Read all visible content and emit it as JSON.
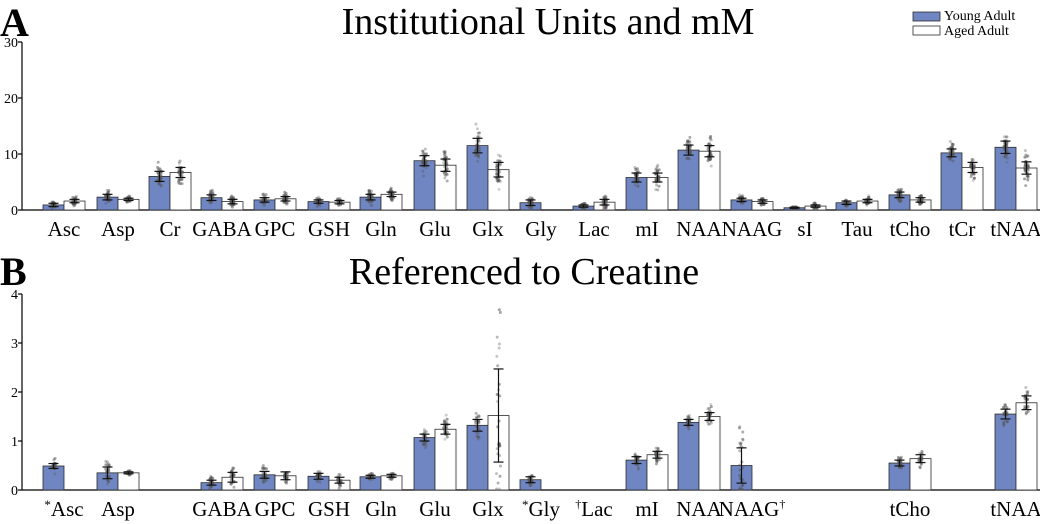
{
  "legend": {
    "young_label": "Young Adult",
    "aged_label": "Aged Adult",
    "young_color": "#6f86c2",
    "aged_color": "#ffffff"
  },
  "chart_data": [
    {
      "panel_letter": "A",
      "type": "bar",
      "title": "Institutional Units and mM",
      "xlabel": "",
      "ylabel": "",
      "ylim": [
        0,
        30
      ],
      "yticks": [
        0,
        10,
        20,
        30
      ],
      "grid": false,
      "legend_position": "top-right",
      "categories": [
        "Asc",
        "Asp",
        "Cr",
        "GABA",
        "GPC",
        "GSH",
        "Gln",
        "Glu",
        "Glx",
        "Gly",
        "Lac",
        "mI",
        "NAA",
        "NAAG",
        "sI",
        "Tau",
        "tCho",
        "tCr",
        "tNAA"
      ],
      "series": [
        {
          "name": "Young Adult",
          "values": [
            0.9,
            2.3,
            6.0,
            2.2,
            1.8,
            1.5,
            2.3,
            8.8,
            11.5,
            1.3,
            0.7,
            5.8,
            10.7,
            1.8,
            0.4,
            1.3,
            2.7,
            10.2,
            11.2
          ],
          "error": [
            0.3,
            0.5,
            0.9,
            0.5,
            0.4,
            0.3,
            0.5,
            0.9,
            1.3,
            0.5,
            0.2,
            0.8,
            0.9,
            0.3,
            0.1,
            0.3,
            0.5,
            0.7,
            1.1
          ]
        },
        {
          "name": "Aged Adult",
          "values": [
            1.6,
            1.9,
            6.7,
            1.5,
            2.0,
            1.4,
            2.8,
            8.0,
            7.2,
            null,
            1.4,
            5.8,
            10.5,
            1.5,
            0.7,
            1.6,
            1.8,
            7.6,
            7.5
          ],
          "error": [
            0.3,
            0.2,
            0.9,
            0.4,
            0.4,
            0.3,
            0.4,
            1.1,
            1.3,
            null,
            0.5,
            0.8,
            1.0,
            0.3,
            0.2,
            0.3,
            0.4,
            0.9,
            1.1
          ]
        }
      ],
      "category_marks": [
        "",
        "",
        "",
        "",
        "",
        "",
        "",
        "",
        "",
        "",
        "",
        "",
        "",
        "",
        "",
        "",
        "",
        "",
        ""
      ]
    },
    {
      "panel_letter": "B",
      "type": "bar",
      "title": "Referenced to Creatine",
      "xlabel": "",
      "ylabel": "",
      "ylim": [
        0,
        4
      ],
      "yticks": [
        0,
        1,
        2,
        3,
        4
      ],
      "grid": false,
      "categories": [
        "Asc",
        "Asp",
        "",
        "GABA",
        "GPC",
        "GSH",
        "Gln",
        "Glu",
        "Glx",
        "Gly",
        "Lac",
        "mI",
        "NAA",
        "NAAG",
        "",
        "",
        "tCho",
        "",
        "tNAA"
      ],
      "series": [
        {
          "name": "Young Adult",
          "values": [
            0.49,
            0.35,
            null,
            0.15,
            0.31,
            0.28,
            0.27,
            1.07,
            1.32,
            0.21,
            null,
            0.61,
            1.38,
            0.5,
            null,
            null,
            0.55,
            null,
            1.55
          ],
          "error": [
            0.05,
            0.12,
            null,
            0.05,
            0.07,
            0.06,
            0.03,
            0.07,
            0.12,
            0.06,
            null,
            0.07,
            0.06,
            0.36,
            null,
            null,
            0.06,
            null,
            0.1
          ]
        },
        {
          "name": "Aged Adult",
          "values": [
            null,
            0.35,
            null,
            0.26,
            0.29,
            0.2,
            0.29,
            1.24,
            1.52,
            null,
            null,
            0.72,
            1.5,
            null,
            null,
            null,
            0.64,
            null,
            1.78
          ],
          "error": [
            null,
            0.02,
            null,
            0.1,
            0.08,
            0.06,
            0.03,
            0.1,
            0.95,
            null,
            null,
            0.07,
            0.08,
            null,
            null,
            null,
            0.08,
            null,
            0.14
          ]
        }
      ],
      "category_marks": [
        "*",
        "",
        "",
        "",
        "",
        "",
        "",
        "",
        "",
        "*",
        "†",
        "",
        "",
        "†",
        "",
        "",
        "",
        "",
        ""
      ]
    }
  ]
}
